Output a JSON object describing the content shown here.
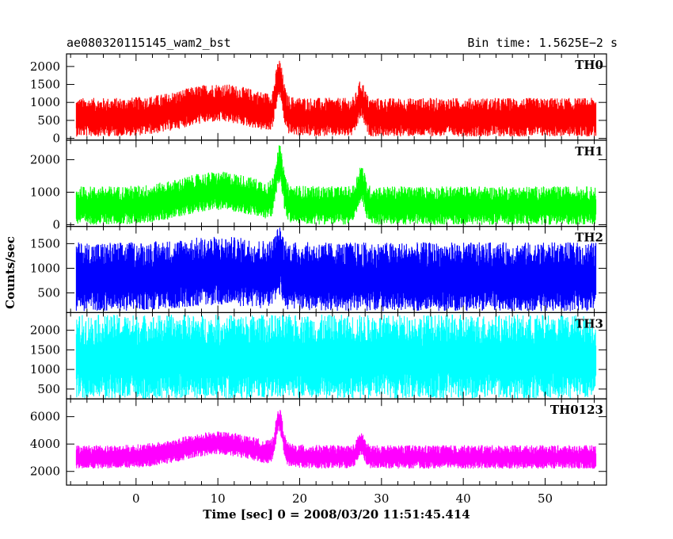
{
  "header": {
    "left_title": "ae080320115145_wam2_bst",
    "right_title": "Bin time: 1.5625E−2 s"
  },
  "chart_data": {
    "type": "line",
    "xlabel": "Time [sec] 0 = 2008/03/20 11:51:45.414",
    "ylabel": "Counts/sec",
    "xlim": [
      -8.5,
      57.5
    ],
    "x_ticks": [
      0,
      10,
      20,
      30,
      40,
      50
    ],
    "x_range_data": [
      -7.3,
      56.2
    ],
    "bin_time": 0.015625,
    "grid": false,
    "panels": [
      {
        "name": "TH0",
        "color": "#ff0000",
        "ylim": [
          -50,
          2350
        ],
        "y_ticks": [
          0,
          500,
          1000,
          1500,
          2000
        ],
        "baseline": 550,
        "spread": 500,
        "bumps": [
          {
            "center": 10,
            "width": 6,
            "height": 400
          },
          {
            "center": 17.5,
            "width": 0.6,
            "height": 1000
          },
          {
            "center": 27.5,
            "width": 0.6,
            "height": 500
          }
        ]
      },
      {
        "name": "TH1",
        "color": "#00ff00",
        "ylim": [
          -50,
          2600
        ],
        "y_ticks": [
          0,
          1000,
          2000
        ],
        "baseline": 550,
        "spread": 550,
        "bumps": [
          {
            "center": 10,
            "width": 6,
            "height": 450
          },
          {
            "center": 17.5,
            "width": 0.6,
            "height": 1200
          },
          {
            "center": 27.5,
            "width": 0.6,
            "height": 700
          }
        ]
      },
      {
        "name": "TH2",
        "color": "#0000ff",
        "ylim": [
          100,
          1850
        ],
        "y_ticks": [
          500,
          1000,
          1500
        ],
        "baseline": 780,
        "spread": 650,
        "bumps": [
          {
            "center": 10,
            "width": 6,
            "height": 120
          },
          {
            "center": 17.5,
            "width": 0.6,
            "height": 300
          }
        ]
      },
      {
        "name": "TH3",
        "color": "#00ffff",
        "ylim": [
          250,
          2450
        ],
        "y_ticks": [
          500,
          1000,
          1500,
          2000
        ],
        "baseline": 1250,
        "spread": 1000,
        "bumps": []
      },
      {
        "name": "TH0123",
        "color": "#ff00ff",
        "ylim": [
          1000,
          7300
        ],
        "y_ticks": [
          2000,
          4000,
          6000
        ],
        "baseline": 3000,
        "spread": 800,
        "bumps": [
          {
            "center": 10,
            "width": 6,
            "height": 1000
          },
          {
            "center": 17.5,
            "width": 0.6,
            "height": 2500
          },
          {
            "center": 27.5,
            "width": 0.6,
            "height": 1000
          }
        ]
      }
    ]
  }
}
